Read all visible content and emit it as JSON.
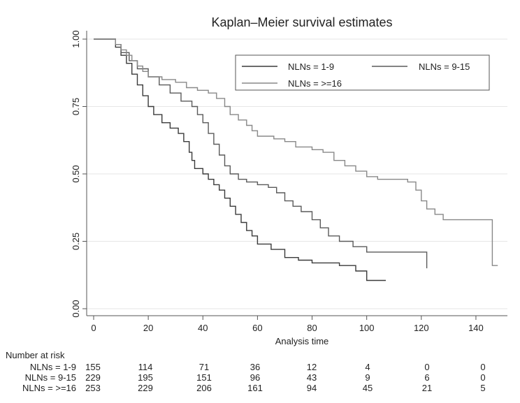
{
  "chart_data": {
    "type": "line",
    "title": "Kaplan–Meier survival estimates",
    "xlabel": "Analysis time",
    "ylabel": "",
    "xlim": [
      0,
      150
    ],
    "ylim": [
      0,
      1
    ],
    "x_ticks": [
      "0",
      "20",
      "40",
      "60",
      "80",
      "100",
      "120",
      "140"
    ],
    "y_ticks": [
      "0.00",
      "0.25",
      "0.50",
      "0.75",
      "1.00"
    ],
    "legend": [
      "NLNs = 1-9",
      "NLNs = 9-15",
      "NLNs = >=16"
    ],
    "series": [
      {
        "name": "NLNs = 1-9",
        "color": "#3a3a3a",
        "points": [
          [
            0,
            1.0
          ],
          [
            6,
            1.0
          ],
          [
            8,
            0.97
          ],
          [
            10,
            0.94
          ],
          [
            12,
            0.91
          ],
          [
            14,
            0.87
          ],
          [
            16,
            0.83
          ],
          [
            18,
            0.79
          ],
          [
            20,
            0.75
          ],
          [
            22,
            0.72
          ],
          [
            25,
            0.69
          ],
          [
            28,
            0.67
          ],
          [
            31,
            0.65
          ],
          [
            33,
            0.62
          ],
          [
            35,
            0.58
          ],
          [
            36,
            0.55
          ],
          [
            37,
            0.52
          ],
          [
            40,
            0.5
          ],
          [
            42,
            0.48
          ],
          [
            44,
            0.46
          ],
          [
            46,
            0.44
          ],
          [
            48,
            0.41
          ],
          [
            50,
            0.38
          ],
          [
            52,
            0.35
          ],
          [
            54,
            0.32
          ],
          [
            56,
            0.29
          ],
          [
            58,
            0.27
          ],
          [
            60,
            0.24
          ],
          [
            65,
            0.22
          ],
          [
            70,
            0.19
          ],
          [
            75,
            0.18
          ],
          [
            80,
            0.17
          ],
          [
            90,
            0.16
          ],
          [
            96,
            0.14
          ],
          [
            100,
            0.105
          ],
          [
            107,
            0.105
          ]
        ]
      },
      {
        "name": "NLNs = 9-15",
        "color": "#5a5a5a",
        "points": [
          [
            0,
            1.0
          ],
          [
            6,
            1.0
          ],
          [
            8,
            0.98
          ],
          [
            10,
            0.95
          ],
          [
            13,
            0.92
          ],
          [
            16,
            0.89
          ],
          [
            20,
            0.86
          ],
          [
            24,
            0.83
          ],
          [
            28,
            0.8
          ],
          [
            32,
            0.77
          ],
          [
            36,
            0.75
          ],
          [
            38,
            0.72
          ],
          [
            40,
            0.69
          ],
          [
            42,
            0.65
          ],
          [
            44,
            0.61
          ],
          [
            46,
            0.57
          ],
          [
            48,
            0.53
          ],
          [
            50,
            0.5
          ],
          [
            53,
            0.48
          ],
          [
            56,
            0.47
          ],
          [
            60,
            0.46
          ],
          [
            64,
            0.45
          ],
          [
            67,
            0.43
          ],
          [
            70,
            0.4
          ],
          [
            73,
            0.38
          ],
          [
            76,
            0.36
          ],
          [
            80,
            0.33
          ],
          [
            83,
            0.3
          ],
          [
            86,
            0.27
          ],
          [
            90,
            0.25
          ],
          [
            95,
            0.23
          ],
          [
            100,
            0.21
          ],
          [
            110,
            0.21
          ],
          [
            121,
            0.21
          ],
          [
            122,
            0.15
          ]
        ]
      },
      {
        "name": "NLNs = >=16",
        "color": "#888888",
        "points": [
          [
            0,
            1.0
          ],
          [
            6,
            1.0
          ],
          [
            8,
            0.98
          ],
          [
            10,
            0.96
          ],
          [
            12,
            0.94
          ],
          [
            14,
            0.92
          ],
          [
            16,
            0.9
          ],
          [
            18,
            0.88
          ],
          [
            20,
            0.86
          ],
          [
            25,
            0.85
          ],
          [
            30,
            0.84
          ],
          [
            34,
            0.82
          ],
          [
            38,
            0.81
          ],
          [
            42,
            0.8
          ],
          [
            45,
            0.78
          ],
          [
            48,
            0.75
          ],
          [
            50,
            0.72
          ],
          [
            53,
            0.7
          ],
          [
            56,
            0.68
          ],
          [
            58,
            0.66
          ],
          [
            60,
            0.64
          ],
          [
            66,
            0.63
          ],
          [
            70,
            0.62
          ],
          [
            74,
            0.6
          ],
          [
            80,
            0.59
          ],
          [
            84,
            0.58
          ],
          [
            88,
            0.55
          ],
          [
            92,
            0.53
          ],
          [
            96,
            0.51
          ],
          [
            100,
            0.49
          ],
          [
            104,
            0.48
          ],
          [
            110,
            0.48
          ],
          [
            115,
            0.47
          ],
          [
            118,
            0.44
          ],
          [
            120,
            0.4
          ],
          [
            122,
            0.37
          ],
          [
            125,
            0.35
          ],
          [
            128,
            0.33
          ],
          [
            135,
            0.33
          ],
          [
            145,
            0.33
          ],
          [
            146,
            0.16
          ],
          [
            148,
            0.16
          ]
        ]
      }
    ]
  },
  "risk_table": {
    "heading": "Number at risk",
    "rows": [
      {
        "label": "NLNs = 1-9",
        "values": [
          "155",
          "114",
          "71",
          "36",
          "12",
          "4",
          "0",
          "0"
        ]
      },
      {
        "label": "NLNs = 9-15",
        "values": [
          "229",
          "195",
          "151",
          "96",
          "43",
          "9",
          "6",
          "0"
        ]
      },
      {
        "label": "NLNs = >=16",
        "values": [
          "253",
          "229",
          "206",
          "161",
          "94",
          "45",
          "21",
          "5"
        ]
      }
    ]
  }
}
